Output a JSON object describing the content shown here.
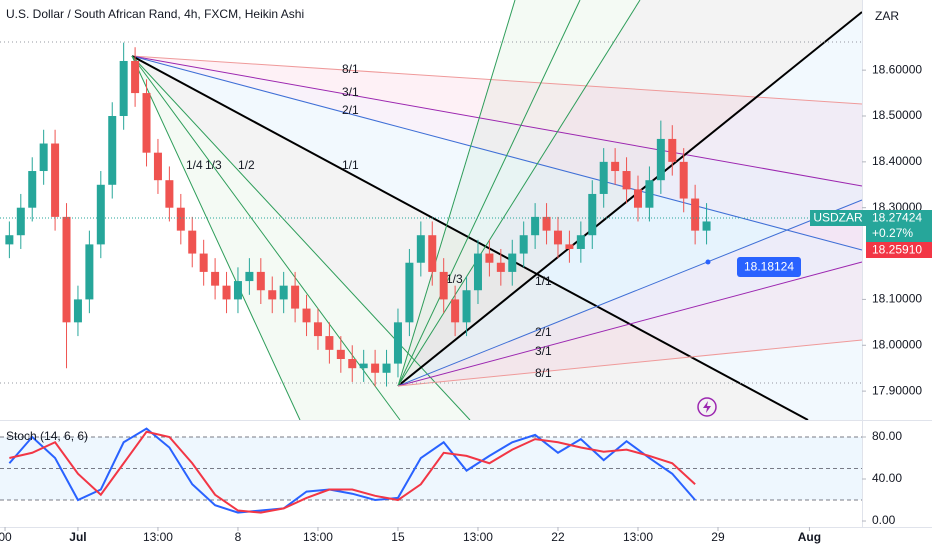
{
  "chart_data": [
    {
      "type": "candlestick",
      "title": "U.S. Dollar / South African Rand, 4h, FXCM, Heikin Ashi",
      "currency": "ZAR",
      "symbol": "USDZAR",
      "last_price": "18.27424",
      "change": "+0.27%",
      "bid_price": "18.25910",
      "measure_label": "18.18124",
      "fan_labels": [
        "8/1",
        "3/1",
        "2/1",
        "1/1",
        "1/2",
        "1/3",
        "1/4",
        "1/1",
        "2/1",
        "3/1",
        "8/1",
        "1/3"
      ],
      "up_color": "#26a69a",
      "down_color": "#ef5350",
      "x": [
        -3,
        -2.5,
        -2,
        -1.5,
        -1,
        -0.5,
        0,
        0.5,
        1,
        1.5,
        2,
        2.5,
        3,
        3.5,
        4,
        4.5,
        5,
        5.5,
        6,
        6.5,
        7,
        7.5,
        8,
        8.5,
        9,
        9.5,
        10,
        10.5,
        11,
        11.5,
        12,
        12.5,
        13,
        13.5,
        14,
        14.5,
        15,
        15.5,
        16,
        16.5,
        17,
        17.5,
        18,
        18.5,
        19,
        19.5,
        20,
        20.5,
        21,
        21.5,
        22,
        22.5,
        23,
        23.5,
        24,
        24.5,
        25,
        25.5,
        26,
        26.5,
        27,
        27.5
      ],
      "open": [
        18.22,
        18.24,
        18.3,
        18.38,
        18.44,
        18.28,
        18.05,
        18.1,
        18.22,
        18.35,
        18.5,
        18.62,
        18.55,
        18.42,
        18.36,
        18.3,
        18.25,
        18.2,
        18.16,
        18.13,
        18.1,
        18.14,
        18.16,
        18.12,
        18.1,
        18.13,
        18.08,
        18.05,
        18.02,
        17.99,
        17.97,
        17.95,
        17.96,
        17.94,
        17.96,
        18.05,
        18.18,
        18.24,
        18.16,
        18.1,
        18.05,
        18.12,
        18.2,
        18.18,
        18.16,
        18.2,
        18.24,
        18.28,
        18.25,
        18.22,
        18.21,
        18.24,
        18.33,
        18.4,
        18.38,
        18.34,
        18.3,
        18.36,
        18.45,
        18.4,
        18.32,
        18.25
      ],
      "high": [
        18.27,
        18.33,
        18.41,
        18.47,
        18.47,
        18.31,
        18.13,
        18.25,
        18.38,
        18.53,
        18.66,
        18.65,
        18.58,
        18.45,
        18.39,
        18.33,
        18.28,
        18.23,
        18.19,
        18.16,
        18.17,
        18.19,
        18.19,
        18.15,
        18.16,
        18.16,
        18.11,
        18.08,
        18.05,
        18.02,
        18.0,
        17.99,
        17.99,
        17.99,
        18.08,
        18.21,
        18.27,
        18.27,
        18.19,
        18.13,
        18.15,
        18.23,
        18.23,
        18.21,
        18.23,
        18.27,
        18.31,
        18.31,
        18.28,
        18.25,
        18.27,
        18.36,
        18.43,
        18.43,
        18.41,
        18.37,
        18.39,
        18.49,
        18.48,
        18.43,
        18.35,
        18.31
      ],
      "low": [
        18.19,
        18.21,
        18.27,
        18.35,
        18.25,
        17.95,
        18.02,
        18.07,
        18.19,
        18.32,
        18.47,
        18.52,
        18.39,
        18.33,
        18.27,
        18.22,
        18.17,
        18.13,
        18.1,
        18.07,
        18.07,
        18.11,
        18.09,
        18.07,
        18.07,
        18.05,
        18.02,
        17.99,
        17.96,
        17.94,
        17.92,
        17.92,
        17.91,
        17.91,
        17.93,
        18.02,
        18.15,
        18.13,
        18.07,
        18.02,
        18.02,
        18.09,
        18.15,
        18.13,
        18.13,
        18.17,
        18.21,
        18.22,
        18.19,
        18.18,
        18.18,
        18.21,
        18.3,
        18.35,
        18.31,
        18.27,
        18.27,
        18.33,
        18.37,
        18.29,
        18.22,
        18.22
      ],
      "close": [
        18.24,
        18.3,
        18.38,
        18.44,
        18.28,
        18.05,
        18.1,
        18.22,
        18.35,
        18.5,
        18.62,
        18.55,
        18.42,
        18.36,
        18.3,
        18.25,
        18.2,
        18.16,
        18.13,
        18.1,
        18.14,
        18.16,
        18.12,
        18.1,
        18.13,
        18.08,
        18.05,
        18.02,
        17.99,
        17.97,
        17.95,
        17.96,
        17.94,
        17.96,
        18.05,
        18.18,
        18.24,
        18.16,
        18.1,
        18.05,
        18.12,
        18.2,
        18.18,
        18.16,
        18.2,
        18.24,
        18.28,
        18.25,
        18.22,
        18.21,
        18.24,
        18.33,
        18.4,
        18.38,
        18.34,
        18.3,
        18.36,
        18.45,
        18.4,
        18.32,
        18.25,
        18.27
      ],
      "xlim": [
        -3.41,
        34.3
      ],
      "xticks": [
        {
          "value": -3.19,
          "label": "00"
        },
        {
          "value": 0,
          "label": "Jul"
        },
        {
          "value": 3.5,
          "label": "13:00"
        },
        {
          "value": 7,
          "label": "8"
        },
        {
          "value": 10.5,
          "label": "13:00"
        },
        {
          "value": 14,
          "label": "15"
        },
        {
          "value": 17.5,
          "label": "13:00"
        },
        {
          "value": 21,
          "label": "22"
        },
        {
          "value": 24.5,
          "label": "13:00"
        },
        {
          "value": 28,
          "label": "29"
        },
        {
          "value": 32,
          "label": "Aug"
        }
      ],
      "ylim": [
        17.837,
        18.753
      ],
      "yticks": [
        {
          "value": 17.9,
          "label": "17.90000"
        },
        {
          "value": 18,
          "label": "18.00000"
        },
        {
          "value": 18.1,
          "label": "18.10000"
        },
        {
          "value": 18.3,
          "label": "18.30000"
        },
        {
          "value": 18.4,
          "label": "18.40000"
        },
        {
          "value": 18.5,
          "label": "18.50000"
        },
        {
          "value": 18.6,
          "label": "18.60000"
        }
      ]
    },
    {
      "type": "line",
      "title": "Stoch (14, 6, 6)",
      "x": [
        -3,
        -2,
        -1,
        0,
        1,
        2,
        3,
        4,
        5,
        6,
        7,
        8,
        9,
        10,
        11,
        12,
        13,
        14,
        15,
        16,
        17,
        18,
        19,
        20,
        21,
        22,
        23,
        24,
        25,
        26,
        27
      ],
      "series": [
        {
          "color": "#2962ff",
          "values": [
            55,
            80,
            60,
            20,
            30,
            75,
            88,
            70,
            35,
            15,
            8,
            10,
            12,
            28,
            30,
            26,
            20,
            22,
            60,
            75,
            48,
            62,
            75,
            82,
            65,
            78,
            58,
            76,
            60,
            45,
            20
          ]
        },
        {
          "color": "#f23645",
          "values": [
            60,
            65,
            75,
            45,
            25,
            55,
            85,
            80,
            55,
            25,
            10,
            8,
            12,
            22,
            30,
            30,
            24,
            20,
            35,
            65,
            62,
            55,
            68,
            78,
            75,
            70,
            66,
            68,
            62,
            55,
            35
          ]
        }
      ],
      "xlim": [
        -3.41,
        34.3
      ],
      "ylim": [
        -5.7,
        96.2
      ],
      "yticks": [
        {
          "value": 80,
          "label": "80.00"
        },
        {
          "value": 40,
          "label": "40.00"
        },
        {
          "value": 0,
          "label": "0.00"
        }
      ]
    }
  ]
}
